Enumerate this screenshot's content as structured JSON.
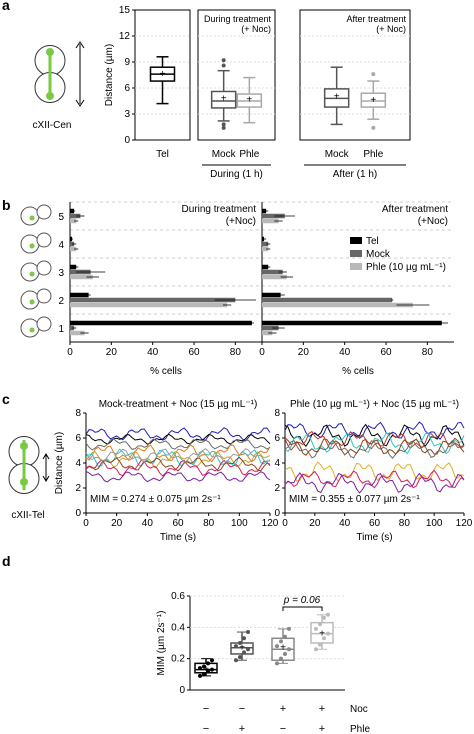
{
  "panels": [
    "a",
    "b",
    "c",
    "d"
  ],
  "chart_data": [
    {
      "type": "box",
      "panel": "a",
      "cell_label": "cXII-Cen",
      "ylabel": "Distance (µm)",
      "ylim": [
        0,
        15
      ],
      "yticks": [
        "0",
        "3",
        "6",
        "9",
        "12",
        "15"
      ],
      "subplots": [
        {
          "annotation": "",
          "group_label": "",
          "boxes": [
            {
              "label": "Tel",
              "color": "#000000",
              "whisker_low": 4.2,
              "q1": 6.8,
              "median": 7.6,
              "q3": 8.4,
              "whisker_high": 9.6,
              "mean": 7.6,
              "outliers": []
            }
          ]
        },
        {
          "annotation": "During treatment\n(+ Noc)",
          "group_label": "During (1 h)",
          "boxes": [
            {
              "label": "Mock",
              "color": "#555555",
              "whisker_low": 2.2,
              "q1": 3.7,
              "median": 4.5,
              "q3": 5.6,
              "whisker_high": 8.0,
              "mean": 4.8,
              "outliers": [
                1.4,
                1.8,
                8.6,
                9.2
              ]
            },
            {
              "label": "Phle",
              "color": "#a8a8a8",
              "whisker_low": 2.0,
              "q1": 3.8,
              "median": 4.5,
              "q3": 5.3,
              "whisker_high": 7.2,
              "mean": 4.7,
              "outliers": []
            }
          ]
        },
        {
          "annotation": "After treatment\n(+ Noc)",
          "group_label": "After (1 h)",
          "boxes": [
            {
              "label": "Mock",
              "color": "#555555",
              "whisker_low": 1.8,
              "q1": 3.8,
              "median": 4.8,
              "q3": 5.9,
              "whisker_high": 8.4,
              "mean": 5.0,
              "outliers": []
            },
            {
              "label": "Phle",
              "color": "#a8a8a8",
              "whisker_low": 2.4,
              "q1": 3.8,
              "median": 4.5,
              "q3": 5.4,
              "whisker_high": 6.8,
              "mean": 4.6,
              "outliers": [
                1.4,
                7.6
              ]
            }
          ]
        }
      ]
    },
    {
      "type": "bar",
      "panel": "b",
      "orientation": "horizontal",
      "categories": [
        "1",
        "2",
        "3",
        "4",
        "5"
      ],
      "xlabel": "% cells",
      "xlim": [
        0,
        90
      ],
      "xticks": [
        "0",
        "20",
        "40",
        "60",
        "80"
      ],
      "legend": {
        "placement": "right",
        "entries": [
          "Tel",
          "Mock",
          "Phle (10 µg mL⁻¹)"
        ]
      },
      "subplots": [
        {
          "title": "During treatment\n(+Noc)",
          "series": [
            {
              "name": "Tel",
              "color": "#000000",
              "values": [
                88,
                9,
                3,
                1,
                2
              ],
              "errors": [
                1,
                1,
                1,
                0.5,
                0.5
              ]
            },
            {
              "name": "Mock",
              "color": "#666666",
              "values": [
                2,
                80,
                10,
                2,
                5
              ],
              "errors": [
                1,
                10,
                7,
                1,
                2
              ]
            },
            {
              "name": "Phle (10 µg mL⁻¹)",
              "color": "#b8b8b8",
              "values": [
                7,
                76,
                11,
                3,
                3
              ],
              "errors": [
                2,
                2,
                3,
                1,
                1
              ]
            }
          ]
        },
        {
          "title": "After treatment\n(+Noc)",
          "series": [
            {
              "name": "Tel",
              "color": "#000000",
              "values": [
                87,
                9,
                3,
                1,
                2
              ],
              "errors": [
                3,
                2,
                1,
                1,
                1
              ]
            },
            {
              "name": "Mock",
              "color": "#666666",
              "values": [
                8,
                63,
                10,
                3,
                11
              ],
              "errors": [
                3,
                0.5,
                2,
                1,
                5
              ]
            },
            {
              "name": "Phle (10 µg mL⁻¹)",
              "color": "#b8b8b8",
              "values": [
                5,
                73,
                12,
                3,
                8
              ],
              "errors": [
                2,
                8,
                3,
                1,
                2
              ]
            }
          ]
        }
      ]
    },
    {
      "type": "line",
      "panel": "c",
      "cell_label": "cXII-Tel",
      "ylabel": "Distance (µm)",
      "xlabel": "Time (s)",
      "xlim": [
        0,
        120
      ],
      "ylim": [
        0,
        8
      ],
      "xticks": [
        "0",
        "20",
        "40",
        "60",
        "80",
        "100",
        "120"
      ],
      "yticks": [
        "0",
        "2",
        "4",
        "6",
        "8"
      ],
      "subplots": [
        {
          "title": "Mock-treatment + Noc (15 µg mL⁻¹)",
          "annotation": "MIM = 0.274 ± 0.075 µm 2s⁻¹",
          "series": [
            {
              "color": "#1f1fbf",
              "base": 6.3,
              "amp": 0.35
            },
            {
              "color": "#000000",
              "base": 5.9,
              "amp": 0.25
            },
            {
              "color": "#6a6a6a",
              "base": 5.5,
              "amp": 0.3
            },
            {
              "color": "#e07b1c",
              "base": 4.8,
              "amp": 0.45
            },
            {
              "color": "#c8a030",
              "base": 4.3,
              "amp": 0.4
            },
            {
              "color": "#2cc6c6",
              "base": 4.4,
              "amp": 0.5
            },
            {
              "color": "#8b4513",
              "base": 3.9,
              "amp": 0.35
            },
            {
              "color": "#d81b60",
              "base": 3.6,
              "amp": 0.4
            },
            {
              "color": "#7b1fa2",
              "base": 2.9,
              "amp": 0.3
            },
            {
              "color": "#9a9a9a",
              "base": 4.6,
              "amp": 0.35
            }
          ]
        },
        {
          "title": "Phle (10 µg mL⁻¹) + Noc (15 µg mL⁻¹)",
          "annotation": "MIM = 0.355 ± 0.077 µm 2s⁻¹",
          "series": [
            {
              "color": "#1f1fbf",
              "base": 6.6,
              "amp": 0.45
            },
            {
              "color": "#000000",
              "base": 6.2,
              "amp": 0.55
            },
            {
              "color": "#c0392b",
              "base": 5.8,
              "amp": 0.5
            },
            {
              "color": "#2cc6c6",
              "base": 5.6,
              "amp": 0.55
            },
            {
              "color": "#6a6a6a",
              "base": 5.1,
              "amp": 0.45
            },
            {
              "color": "#e0b020",
              "base": 3.3,
              "amp": 0.55
            },
            {
              "color": "#d81b60",
              "base": 2.7,
              "amp": 0.45
            },
            {
              "color": "#7b1fa2",
              "base": 2.4,
              "amp": 0.5
            },
            {
              "color": "#8b4513",
              "base": 5.3,
              "amp": 0.5
            }
          ]
        }
      ]
    },
    {
      "type": "box",
      "panel": "d",
      "ylabel": "MIM (µm 2s⁻¹)",
      "ylim": [
        0,
        0.6
      ],
      "yticks": [
        "0",
        "0.2",
        "0.4",
        "0.6"
      ],
      "row_labels": [
        "Noc",
        "Phle"
      ],
      "conditions": [
        [
          "−",
          "−"
        ],
        [
          "−",
          "+"
        ],
        [
          "+",
          "−"
        ],
        [
          "+",
          "+"
        ]
      ],
      "annotation": "p = 0.06",
      "boxes": [
        {
          "color": "#000000",
          "whisker_low": 0.09,
          "q1": 0.11,
          "median": 0.13,
          "q3": 0.17,
          "whisker_high": 0.2,
          "mean": 0.135,
          "points": [
            0.09,
            0.1,
            0.12,
            0.13,
            0.14,
            0.15,
            0.17,
            0.19
          ]
        },
        {
          "color": "#555555",
          "whisker_low": 0.19,
          "q1": 0.23,
          "median": 0.27,
          "q3": 0.3,
          "whisker_high": 0.37,
          "mean": 0.27,
          "points": [
            0.19,
            0.21,
            0.24,
            0.26,
            0.28,
            0.3,
            0.33,
            0.37
          ]
        },
        {
          "color": "#888888",
          "whisker_low": 0.17,
          "q1": 0.19,
          "median": 0.26,
          "q3": 0.33,
          "whisker_high": 0.39,
          "mean": 0.27,
          "points": [
            0.17,
            0.2,
            0.23,
            0.26,
            0.28,
            0.31,
            0.34,
            0.39
          ]
        },
        {
          "color": "#bbbbbb",
          "whisker_low": 0.26,
          "q1": 0.3,
          "median": 0.36,
          "q3": 0.43,
          "whisker_high": 0.48,
          "mean": 0.36,
          "points": [
            0.26,
            0.29,
            0.33,
            0.36,
            0.39,
            0.42,
            0.46,
            0.48
          ]
        }
      ]
    }
  ]
}
